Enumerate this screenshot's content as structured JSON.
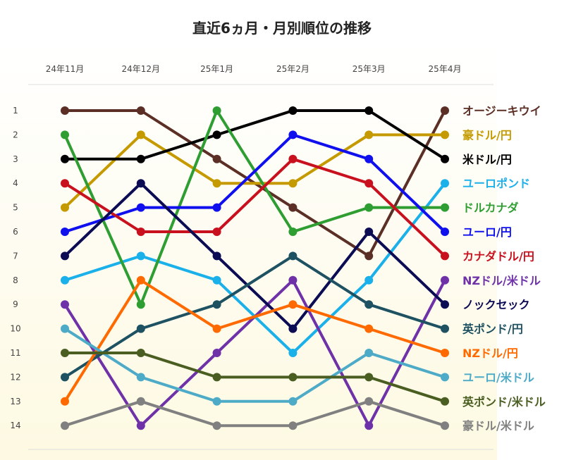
{
  "chart_data": {
    "type": "line",
    "title": "直近6ヵ月・月別順位の推移",
    "categories": [
      "24年11月",
      "24年12月",
      "25年1月",
      "25年2月",
      "25年3月",
      "25年4月"
    ],
    "ranks": [
      "1",
      "2",
      "3",
      "4",
      "5",
      "6",
      "7",
      "8",
      "9",
      "10",
      "11",
      "12",
      "13",
      "14"
    ],
    "ylim": [
      1,
      14
    ],
    "series": [
      {
        "name": "オージーキウイ",
        "color": "#5b2f25",
        "values": [
          1,
          1,
          3,
          5,
          7,
          1
        ]
      },
      {
        "name": "豪ドル/円",
        "color": "#c59a00",
        "values": [
          5,
          2,
          4,
          4,
          2,
          2
        ]
      },
      {
        "name": "米ドル/円",
        "color": "#000000",
        "values": [
          3,
          3,
          2,
          1,
          1,
          3
        ]
      },
      {
        "name": "ユーロポンド",
        "color": "#1ab0ea",
        "values": [
          8,
          7,
          8,
          11,
          8,
          4
        ]
      },
      {
        "name": "ドルカナダ",
        "color": "#2f9e32",
        "values": [
          2,
          9,
          1,
          6,
          5,
          5
        ]
      },
      {
        "name": "ユーロ/円",
        "color": "#1010ee",
        "values": [
          6,
          5,
          5,
          2,
          3,
          6
        ]
      },
      {
        "name": "カナダドル/円",
        "color": "#c8101e",
        "values": [
          4,
          6,
          6,
          3,
          4,
          7
        ]
      },
      {
        "name": "NZドル/米ドル",
        "color": "#6f31a8",
        "values": [
          9,
          14,
          11,
          8,
          14,
          8
        ]
      },
      {
        "name": "ノックセック",
        "color": "#0c0c55",
        "values": [
          7,
          4,
          7,
          10,
          6,
          9
        ]
      },
      {
        "name": "英ポンド/円",
        "color": "#1e5262",
        "values": [
          12,
          10,
          9,
          7,
          9,
          10
        ]
      },
      {
        "name": "NZドル/円",
        "color": "#ff6a00",
        "values": [
          13,
          8,
          10,
          9,
          10,
          11
        ]
      },
      {
        "name": "ユーロ/米ドル",
        "color": "#4eabc8",
        "values": [
          10,
          12,
          13,
          13,
          11,
          12
        ]
      },
      {
        "name": "英ポンド/米ドル",
        "color": "#4b5e22",
        "values": [
          11,
          11,
          12,
          12,
          12,
          13
        ]
      },
      {
        "name": "豪ドル/米ドル",
        "color": "#808080",
        "values": [
          14,
          13,
          14,
          14,
          13,
          14
        ]
      }
    ]
  }
}
